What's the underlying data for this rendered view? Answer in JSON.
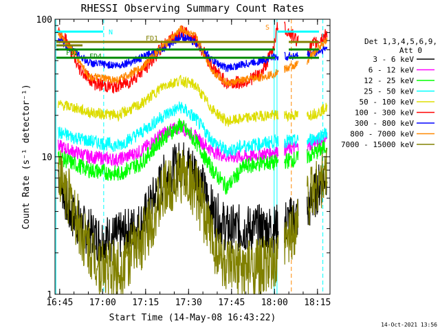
{
  "chart_data": {
    "type": "line",
    "title": "RHESSI Observing Summary Count Rates",
    "xlabel": "Start Time (14-May-08 16:43:22)",
    "ylabel": "Count Rate (s⁻¹ detector⁻¹)",
    "yscale": "log",
    "ylim": [
      1,
      100
    ],
    "xlim_minutes": [
      0,
      96
    ],
    "x_tick_labels": [
      "16:45",
      "17:00",
      "17:15",
      "17:30",
      "17:45",
      "18:00",
      "18:15"
    ],
    "x_tick_minutes": [
      1.63,
      16.63,
      31.63,
      46.63,
      61.63,
      76.63,
      91.63
    ],
    "y_tick_labels": [
      "1",
      "10",
      "100"
    ],
    "y_tick_values": [
      1,
      10,
      100
    ],
    "legend_header": [
      "Det 1,3,4,5,6,9,",
      "Att 0"
    ],
    "date_stamp": "14-Oct-2021 13:56",
    "flags": {
      "N_label": "N",
      "S_label": "S",
      "FD1_label": "FD1",
      "FD2_label": "FD2",
      "FD4_label": "FD4"
    },
    "gaps_minutes": [
      [
        0,
        1
      ],
      [
        78,
        80
      ],
      [
        85,
        88
      ]
    ],
    "series": [
      {
        "name": "3 - 6 keV",
        "color": "#000000",
        "points": [
          [
            1,
            8
          ],
          [
            5,
            4
          ],
          [
            10,
            3
          ],
          [
            16,
            2.5
          ],
          [
            22,
            2.6
          ],
          [
            30,
            3.2
          ],
          [
            38,
            7
          ],
          [
            44,
            9
          ],
          [
            49,
            8
          ],
          [
            55,
            4
          ],
          [
            60,
            3
          ],
          [
            66,
            3
          ],
          [
            73,
            3
          ],
          [
            77,
            3
          ],
          [
            88,
            4
          ],
          [
            92,
            6
          ],
          [
            95,
            8
          ]
        ]
      },
      {
        "name": "6 - 12 keV",
        "color": "#ff00ff",
        "points": [
          [
            1,
            12
          ],
          [
            6,
            11
          ],
          [
            12,
            10
          ],
          [
            22,
            9.5
          ],
          [
            30,
            11
          ],
          [
            38,
            15
          ],
          [
            44,
            16.5
          ],
          [
            49,
            14
          ],
          [
            55,
            11
          ],
          [
            60,
            10
          ],
          [
            66,
            10
          ],
          [
            73,
            10.5
          ],
          [
            77,
            11
          ],
          [
            88,
            12
          ],
          [
            92,
            13
          ],
          [
            95,
            14
          ]
        ]
      },
      {
        "name": "12 - 25 keV",
        "color": "#00ff00",
        "points": [
          [
            1,
            10
          ],
          [
            6,
            9
          ],
          [
            12,
            8
          ],
          [
            22,
            7.5
          ],
          [
            30,
            9
          ],
          [
            38,
            14
          ],
          [
            44,
            17
          ],
          [
            49,
            13
          ],
          [
            55,
            8
          ],
          [
            60,
            6
          ],
          [
            66,
            8.5
          ],
          [
            73,
            9
          ],
          [
            77,
            9
          ],
          [
            88,
            10
          ],
          [
            92,
            11
          ],
          [
            95,
            12
          ]
        ]
      },
      {
        "name": "25 - 50 keV",
        "color": "#00ffff",
        "points": [
          [
            1,
            15
          ],
          [
            6,
            14
          ],
          [
            12,
            13
          ],
          [
            22,
            12
          ],
          [
            30,
            15
          ],
          [
            38,
            20
          ],
          [
            44,
            23
          ],
          [
            49,
            19
          ],
          [
            55,
            13
          ],
          [
            60,
            11
          ],
          [
            66,
            12
          ],
          [
            73,
            12.5
          ],
          [
            77,
            13
          ],
          [
            88,
            13
          ],
          [
            92,
            14
          ],
          [
            95,
            15
          ]
        ]
      },
      {
        "name": "50 - 100 keV",
        "color": "#dddd00",
        "points": [
          [
            1,
            24
          ],
          [
            6,
            23
          ],
          [
            12,
            21
          ],
          [
            22,
            20
          ],
          [
            30,
            24
          ],
          [
            38,
            33
          ],
          [
            44,
            36
          ],
          [
            49,
            33
          ],
          [
            55,
            22
          ],
          [
            60,
            18
          ],
          [
            66,
            19
          ],
          [
            73,
            20
          ],
          [
            77,
            20
          ],
          [
            88,
            20
          ],
          [
            92,
            21
          ],
          [
            95,
            23
          ]
        ]
      },
      {
        "name": "100 - 300 keV",
        "color": "#ff0000",
        "points": [
          [
            1,
            80
          ],
          [
            4,
            70
          ],
          [
            8,
            45
          ],
          [
            14,
            34
          ],
          [
            20,
            32
          ],
          [
            26,
            35
          ],
          [
            32,
            45
          ],
          [
            38,
            65
          ],
          [
            44,
            82
          ],
          [
            49,
            72
          ],
          [
            55,
            45
          ],
          [
            60,
            34
          ],
          [
            66,
            35
          ],
          [
            72,
            40
          ],
          [
            76,
            60
          ],
          [
            78,
            95
          ],
          [
            88,
            60
          ],
          [
            92,
            70
          ],
          [
            95,
            78
          ]
        ]
      },
      {
        "name": "300 - 800 keV",
        "color": "#0000ff",
        "points": [
          [
            1,
            72
          ],
          [
            6,
            60
          ],
          [
            12,
            48
          ],
          [
            22,
            46
          ],
          [
            30,
            52
          ],
          [
            38,
            62
          ],
          [
            44,
            75
          ],
          [
            49,
            68
          ],
          [
            55,
            50
          ],
          [
            60,
            44
          ],
          [
            66,
            47
          ],
          [
            72,
            50
          ],
          [
            76,
            53
          ],
          [
            88,
            55
          ],
          [
            92,
            58
          ],
          [
            95,
            62
          ]
        ]
      },
      {
        "name": "800 - 7000 keV",
        "color": "#ff8800",
        "points": [
          [
            1,
            80
          ],
          [
            6,
            60
          ],
          [
            12,
            38
          ],
          [
            22,
            36
          ],
          [
            30,
            44
          ],
          [
            38,
            65
          ],
          [
            44,
            85
          ],
          [
            49,
            75
          ],
          [
            55,
            42
          ],
          [
            60,
            34
          ],
          [
            66,
            36
          ],
          [
            72,
            38
          ],
          [
            76,
            40
          ],
          [
            88,
            50
          ],
          [
            92,
            62
          ],
          [
            95,
            72
          ]
        ]
      },
      {
        "name": "7000 - 15000 keV",
        "color": "#808000",
        "points": [
          [
            1,
            8
          ],
          [
            5,
            5
          ],
          [
            10,
            2.5
          ],
          [
            16,
            1.6
          ],
          [
            22,
            1.5
          ],
          [
            30,
            2.4
          ],
          [
            38,
            5.5
          ],
          [
            44,
            7.5
          ],
          [
            49,
            6
          ],
          [
            55,
            2.5
          ],
          [
            60,
            1.5
          ],
          [
            66,
            1.5
          ],
          [
            73,
            1.6
          ],
          [
            77,
            1.6
          ],
          [
            88,
            5
          ],
          [
            92,
            6.5
          ],
          [
            95,
            7.5
          ]
        ]
      }
    ]
  }
}
